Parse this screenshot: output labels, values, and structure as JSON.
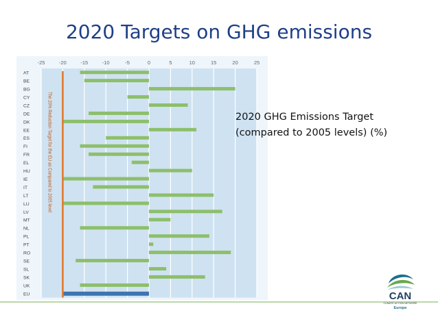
{
  "slide": {
    "title": "2020 Targets on GHG emissions",
    "note_line1": "2020 GHG Emissions Target",
    "note_line2": "(compared to 2005 levels) (%)"
  },
  "logo": {
    "name": "CAN",
    "tagline": "CLIMATE ACTION NETWORK",
    "region": "Europe"
  },
  "colors": {
    "title": "#1f3f87",
    "bar": "#8dbf6b",
    "eu_bar": "#3f74b0",
    "reference_line": "#e07a2e",
    "plot_background": "#cfe2f1",
    "gridline": "#ffffff"
  },
  "chart_data": {
    "type": "bar",
    "orientation": "horizontal",
    "categories": [
      "AT",
      "BE",
      "BG",
      "CY",
      "CZ",
      "DE",
      "DK",
      "EE",
      "ES",
      "FI",
      "FR",
      "EL",
      "HU",
      "IE",
      "IT",
      "LT",
      "LU",
      "LV",
      "MT",
      "NL",
      "PL",
      "PT",
      "RO",
      "SE",
      "SL",
      "SK",
      "UK",
      "EU"
    ],
    "values": [
      -16,
      -15,
      20,
      -5,
      9,
      -14,
      -20,
      11,
      -10,
      -16,
      -14,
      -4,
      10,
      -20,
      -13,
      15,
      -20,
      17,
      5,
      -16,
      14,
      1,
      19,
      -17,
      4,
      13,
      -16,
      -20
    ],
    "xlim": [
      -25,
      25
    ],
    "xticks": [
      -25,
      -20,
      -15,
      -10,
      -5,
      0,
      5,
      10,
      15,
      20,
      25
    ],
    "reference_line": {
      "x": -20,
      "label": "The 20% Reduction Target for the EU as Compared to 2005 level"
    },
    "grid": true,
    "legend": "none"
  }
}
